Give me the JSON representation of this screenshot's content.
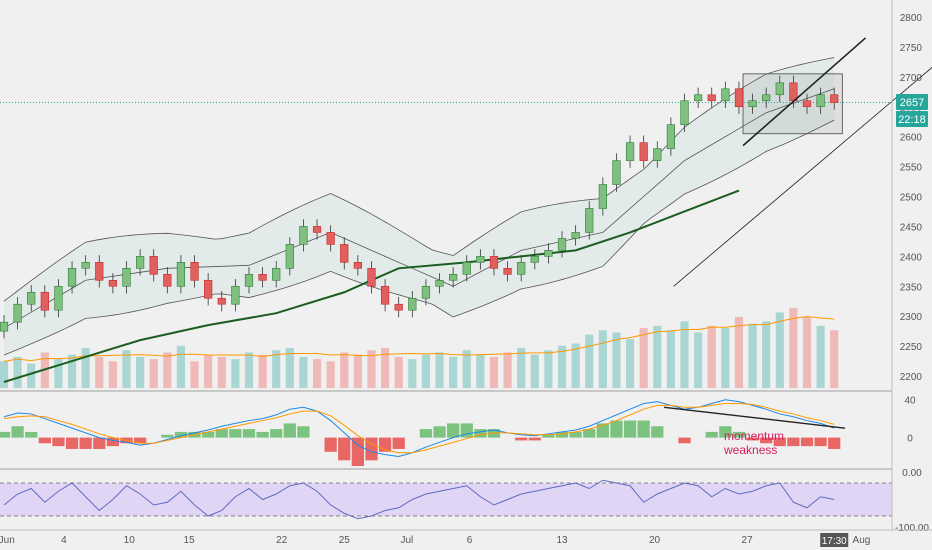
{
  "colors": {
    "background": "#f0f0f0",
    "up": "#26a69a",
    "down": "#ef5350",
    "bollinger": "#555555",
    "sma": "#1b5e20",
    "volume_ma": "#ff9800",
    "macd": "#1e88e5",
    "signal": "#ff9800",
    "rsi": "#5c6bc0",
    "rsi_band": "#e1d5f5",
    "annotation": "#d81b60"
  },
  "chart_data": [
    {
      "type": "candlestick",
      "panel": "price",
      "ylim": [
        2180,
        2820
      ],
      "y_ticks": [
        "2200",
        "2250",
        "2300",
        "2350",
        "2400",
        "2450",
        "2500",
        "2550",
        "2600",
        "2650",
        "2700",
        "2750",
        "2800"
      ],
      "x_range": [
        0,
        62
      ],
      "x_ticks": [
        {
          "label": "Jun",
          "x": 0.2
        },
        {
          "label": "4",
          "x": 4.4
        },
        {
          "label": "10",
          "x": 9.2
        },
        {
          "label": "15",
          "x": 13.6
        },
        {
          "label": "22",
          "x": 20.4
        },
        {
          "label": "25",
          "x": 25.0
        },
        {
          "label": "Jul",
          "x": 29.6
        },
        {
          "label": "6",
          "x": 34.2
        },
        {
          "label": "13",
          "x": 41.0
        },
        {
          "label": "20",
          "x": 47.8
        },
        {
          "label": "27",
          "x": 54.6
        },
        {
          "label": "Aug",
          "x": 63.0
        }
      ],
      "closes": [
        2290,
        2320,
        2340,
        2310,
        2350,
        2380,
        2390,
        2360,
        2350,
        2380,
        2400,
        2370,
        2350,
        2390,
        2360,
        2330,
        2320,
        2350,
        2370,
        2360,
        2380,
        2420,
        2450,
        2440,
        2420,
        2390,
        2380,
        2350,
        2320,
        2310,
        2330,
        2350,
        2360,
        2370,
        2390,
        2400,
        2380,
        2370,
        2390,
        2400,
        2410,
        2430,
        2440,
        2480,
        2520,
        2560,
        2590,
        2560,
        2580,
        2620,
        2660,
        2670,
        2660,
        2680,
        2650,
        2660,
        2670,
        2690,
        2660,
        2650,
        2670,
        2657
      ],
      "price_label": {
        "value": "2657",
        "countdown": "22:18"
      },
      "current_price": 2657,
      "sma": {
        "name": "",
        "points": [
          [
            0,
            2190
          ],
          [
            5,
            2225
          ],
          [
            10,
            2260
          ],
          [
            15,
            2285
          ],
          [
            20,
            2305
          ],
          [
            25,
            2340
          ],
          [
            29,
            2380
          ],
          [
            34,
            2390
          ],
          [
            38,
            2400
          ],
          [
            42,
            2410
          ],
          [
            46,
            2440
          ],
          [
            50,
            2475
          ],
          [
            54,
            2510
          ]
        ]
      },
      "bollinger_mid": [
        [
          0,
          2280
        ],
        [
          6,
          2360
        ],
        [
          12,
          2380
        ],
        [
          18,
          2385
        ],
        [
          24,
          2440
        ],
        [
          28,
          2400
        ],
        [
          33,
          2350
        ],
        [
          38,
          2410
        ],
        [
          44,
          2440
        ],
        [
          50,
          2560
        ],
        [
          56,
          2640
        ],
        [
          61,
          2680
        ]
      ],
      "rect_zone": {
        "x0": 54.3,
        "x1": 61.6,
        "y0": 2605,
        "y1": 2705
      },
      "trend_lines": [
        {
          "x0": 54.3,
          "y0": 2585,
          "x1": 63.3,
          "y1": 2765
        },
        {
          "x0": 49.2,
          "y0": 2350,
          "x1": 73.6,
          "y1": 2820
        }
      ]
    },
    {
      "type": "bar",
      "panel": "volume",
      "values": [
        60,
        70,
        55,
        80,
        65,
        75,
        90,
        70,
        60,
        85,
        70,
        65,
        80,
        95,
        60,
        75,
        70,
        65,
        80,
        75,
        85,
        90,
        70,
        65,
        60,
        80,
        75,
        85,
        90,
        70,
        65,
        75,
        80,
        70,
        85,
        75,
        70,
        80,
        90,
        75,
        85,
        95,
        100,
        120,
        130,
        125,
        110,
        135,
        140,
        130,
        150,
        125,
        140,
        135,
        160,
        145,
        150,
        170,
        180,
        160,
        140,
        130
      ]
    },
    {
      "type": "line",
      "panel": "macd",
      "ylim": [
        -30,
        45
      ],
      "y_ticks": [
        "40",
        "0"
      ],
      "series": [
        {
          "name": "",
          "values": [
            22,
            26,
            25,
            20,
            15,
            10,
            5,
            0,
            -3,
            -5,
            -8,
            -6,
            -2,
            2,
            5,
            8,
            12,
            15,
            18,
            20,
            24,
            30,
            32,
            28,
            18,
            5,
            -8,
            -15,
            -18,
            -20,
            -16,
            -10,
            -5,
            0,
            4,
            6,
            8,
            5,
            3,
            2,
            4,
            6,
            8,
            12,
            18,
            24,
            30,
            36,
            38,
            34,
            30,
            32,
            36,
            40,
            38,
            34,
            30,
            25,
            22,
            18,
            15,
            10
          ]
        },
        {
          "name": "",
          "values": [
            20,
            22,
            23,
            22,
            18,
            14,
            9,
            4,
            0,
            -3,
            -6,
            -6,
            -3,
            0,
            3,
            6,
            9,
            12,
            15,
            18,
            21,
            25,
            28,
            28,
            23,
            13,
            2,
            -7,
            -13,
            -16,
            -16,
            -13,
            -9,
            -5,
            -1,
            3,
            5,
            5,
            4,
            3,
            3,
            4,
            6,
            9,
            13,
            18,
            24,
            30,
            34,
            34,
            32,
            32,
            34,
            36,
            36,
            35,
            32,
            28,
            25,
            21,
            18,
            14
          ]
        }
      ],
      "annotation": {
        "line1": "momentum",
        "line2": "weakness"
      }
    },
    {
      "type": "line",
      "panel": "rsi",
      "ylim": [
        -100,
        0
      ],
      "y_ticks": [
        "0.00",
        "-100.00"
      ],
      "band": [
        -20,
        -80
      ],
      "values": [
        -60,
        -40,
        -30,
        -55,
        -35,
        -20,
        -45,
        -70,
        -50,
        -25,
        -40,
        -60,
        -55,
        -35,
        -60,
        -80,
        -70,
        -45,
        -30,
        -50,
        -40,
        -25,
        -20,
        -35,
        -60,
        -75,
        -85,
        -80,
        -70,
        -65,
        -50,
        -40,
        -35,
        -30,
        -25,
        -45,
        -60,
        -50,
        -40,
        -35,
        -30,
        -25,
        -20,
        -30,
        -15,
        -20,
        -25,
        -55,
        -40,
        -30,
        -20,
        -25,
        -45,
        -30,
        -40,
        -35,
        -25,
        -20,
        -55,
        -65,
        -45,
        -50
      ]
    }
  ]
}
